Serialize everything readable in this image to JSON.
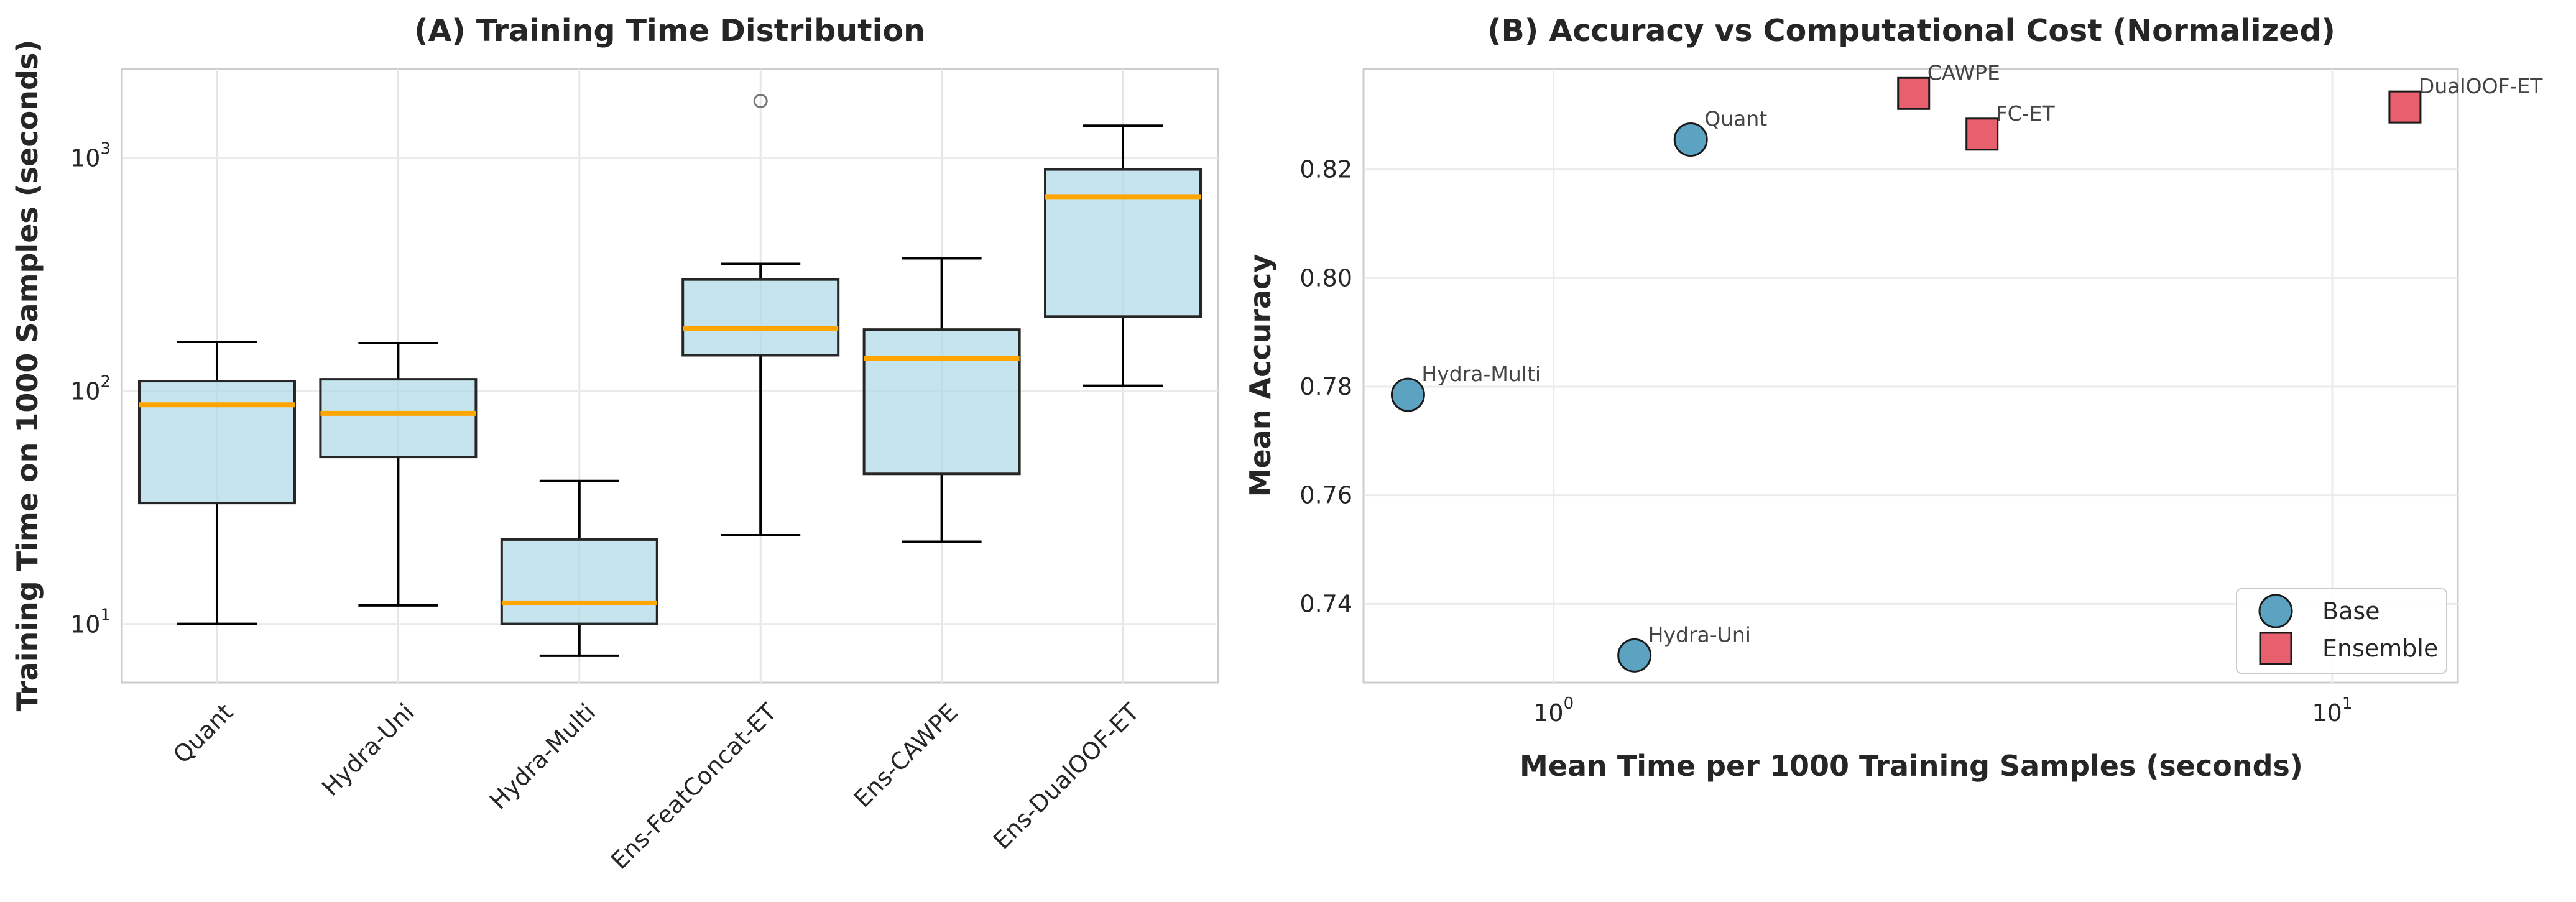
{
  "chart_data": [
    {
      "type": "box",
      "title": "(A) Training Time Distribution",
      "xlabel": "",
      "ylabel": "Training Time on 1000 Samples (seconds)",
      "yscale": "log",
      "ylim": [
        5.6,
        2400
      ],
      "y_ticks": [
        {
          "base": "10",
          "exp": "1",
          "value": 10
        },
        {
          "base": "10",
          "exp": "2",
          "value": 100
        },
        {
          "base": "10",
          "exp": "3",
          "value": 1000
        }
      ],
      "grid": true,
      "colors": {
        "box": "#add8e6",
        "median": "#ffa500",
        "edge": "#262626"
      },
      "categories": [
        "Quant",
        "Hydra-Uni",
        "Hydra-Multi",
        "Ens-FeatConcat-ET",
        "Ens-CAWPE",
        "Ens-DualOOF-ET"
      ],
      "boxes": [
        {
          "whislo": 10,
          "q1": 33,
          "med": 87,
          "q3": 110,
          "whishi": 162,
          "fliers": []
        },
        {
          "whislo": 12,
          "q1": 52,
          "med": 80,
          "q3": 112,
          "whishi": 160,
          "fliers": []
        },
        {
          "whislo": 7.3,
          "q1": 10,
          "med": 12.3,
          "q3": 23,
          "whishi": 41,
          "fliers": []
        },
        {
          "whislo": 24,
          "q1": 142,
          "med": 185,
          "q3": 300,
          "whishi": 350,
          "fliers": [
            1750
          ]
        },
        {
          "whislo": 22.5,
          "q1": 44,
          "med": 138,
          "q3": 183,
          "whishi": 370,
          "fliers": []
        },
        {
          "whislo": 105,
          "q1": 208,
          "med": 680,
          "q3": 890,
          "whishi": 1370,
          "fliers": []
        }
      ]
    },
    {
      "type": "scatter",
      "title": "(B) Accuracy vs Computational Cost (Normalized)",
      "xlabel": "Mean Time per 1000 Training Samples (seconds)",
      "ylabel": "Mean Accuracy",
      "xscale": "log",
      "xlim": [
        0.57,
        14.5
      ],
      "ylim": [
        0.7255,
        0.8385
      ],
      "x_ticks": [
        {
          "base": "10",
          "exp": "0",
          "value": 1
        },
        {
          "base": "10",
          "exp": "1",
          "value": 10
        }
      ],
      "y_ticks": [
        "0.74",
        "0.76",
        "0.78",
        "0.80",
        "0.82"
      ],
      "grid": true,
      "legend": {
        "position": "lower right"
      },
      "series": [
        {
          "name": "Base",
          "marker": "circle",
          "color": "#5ba3c0",
          "points": [
            {
              "label": "Quant",
              "x": 1.5,
              "y": 0.8255
            },
            {
              "label": "Hydra-Multi",
              "x": 0.65,
              "y": 0.7785
            },
            {
              "label": "Hydra-Uni",
              "x": 1.27,
              "y": 0.7305
            }
          ]
        },
        {
          "name": "Ensemble",
          "marker": "square",
          "color": "#e8606e",
          "points": [
            {
              "label": "CAWPE",
              "x": 2.9,
              "y": 0.834
            },
            {
              "label": "FC-ET",
              "x": 3.55,
              "y": 0.8265
            },
            {
              "label": "DualOOF-ET",
              "x": 12.4,
              "y": 0.8315
            }
          ]
        }
      ]
    }
  ]
}
